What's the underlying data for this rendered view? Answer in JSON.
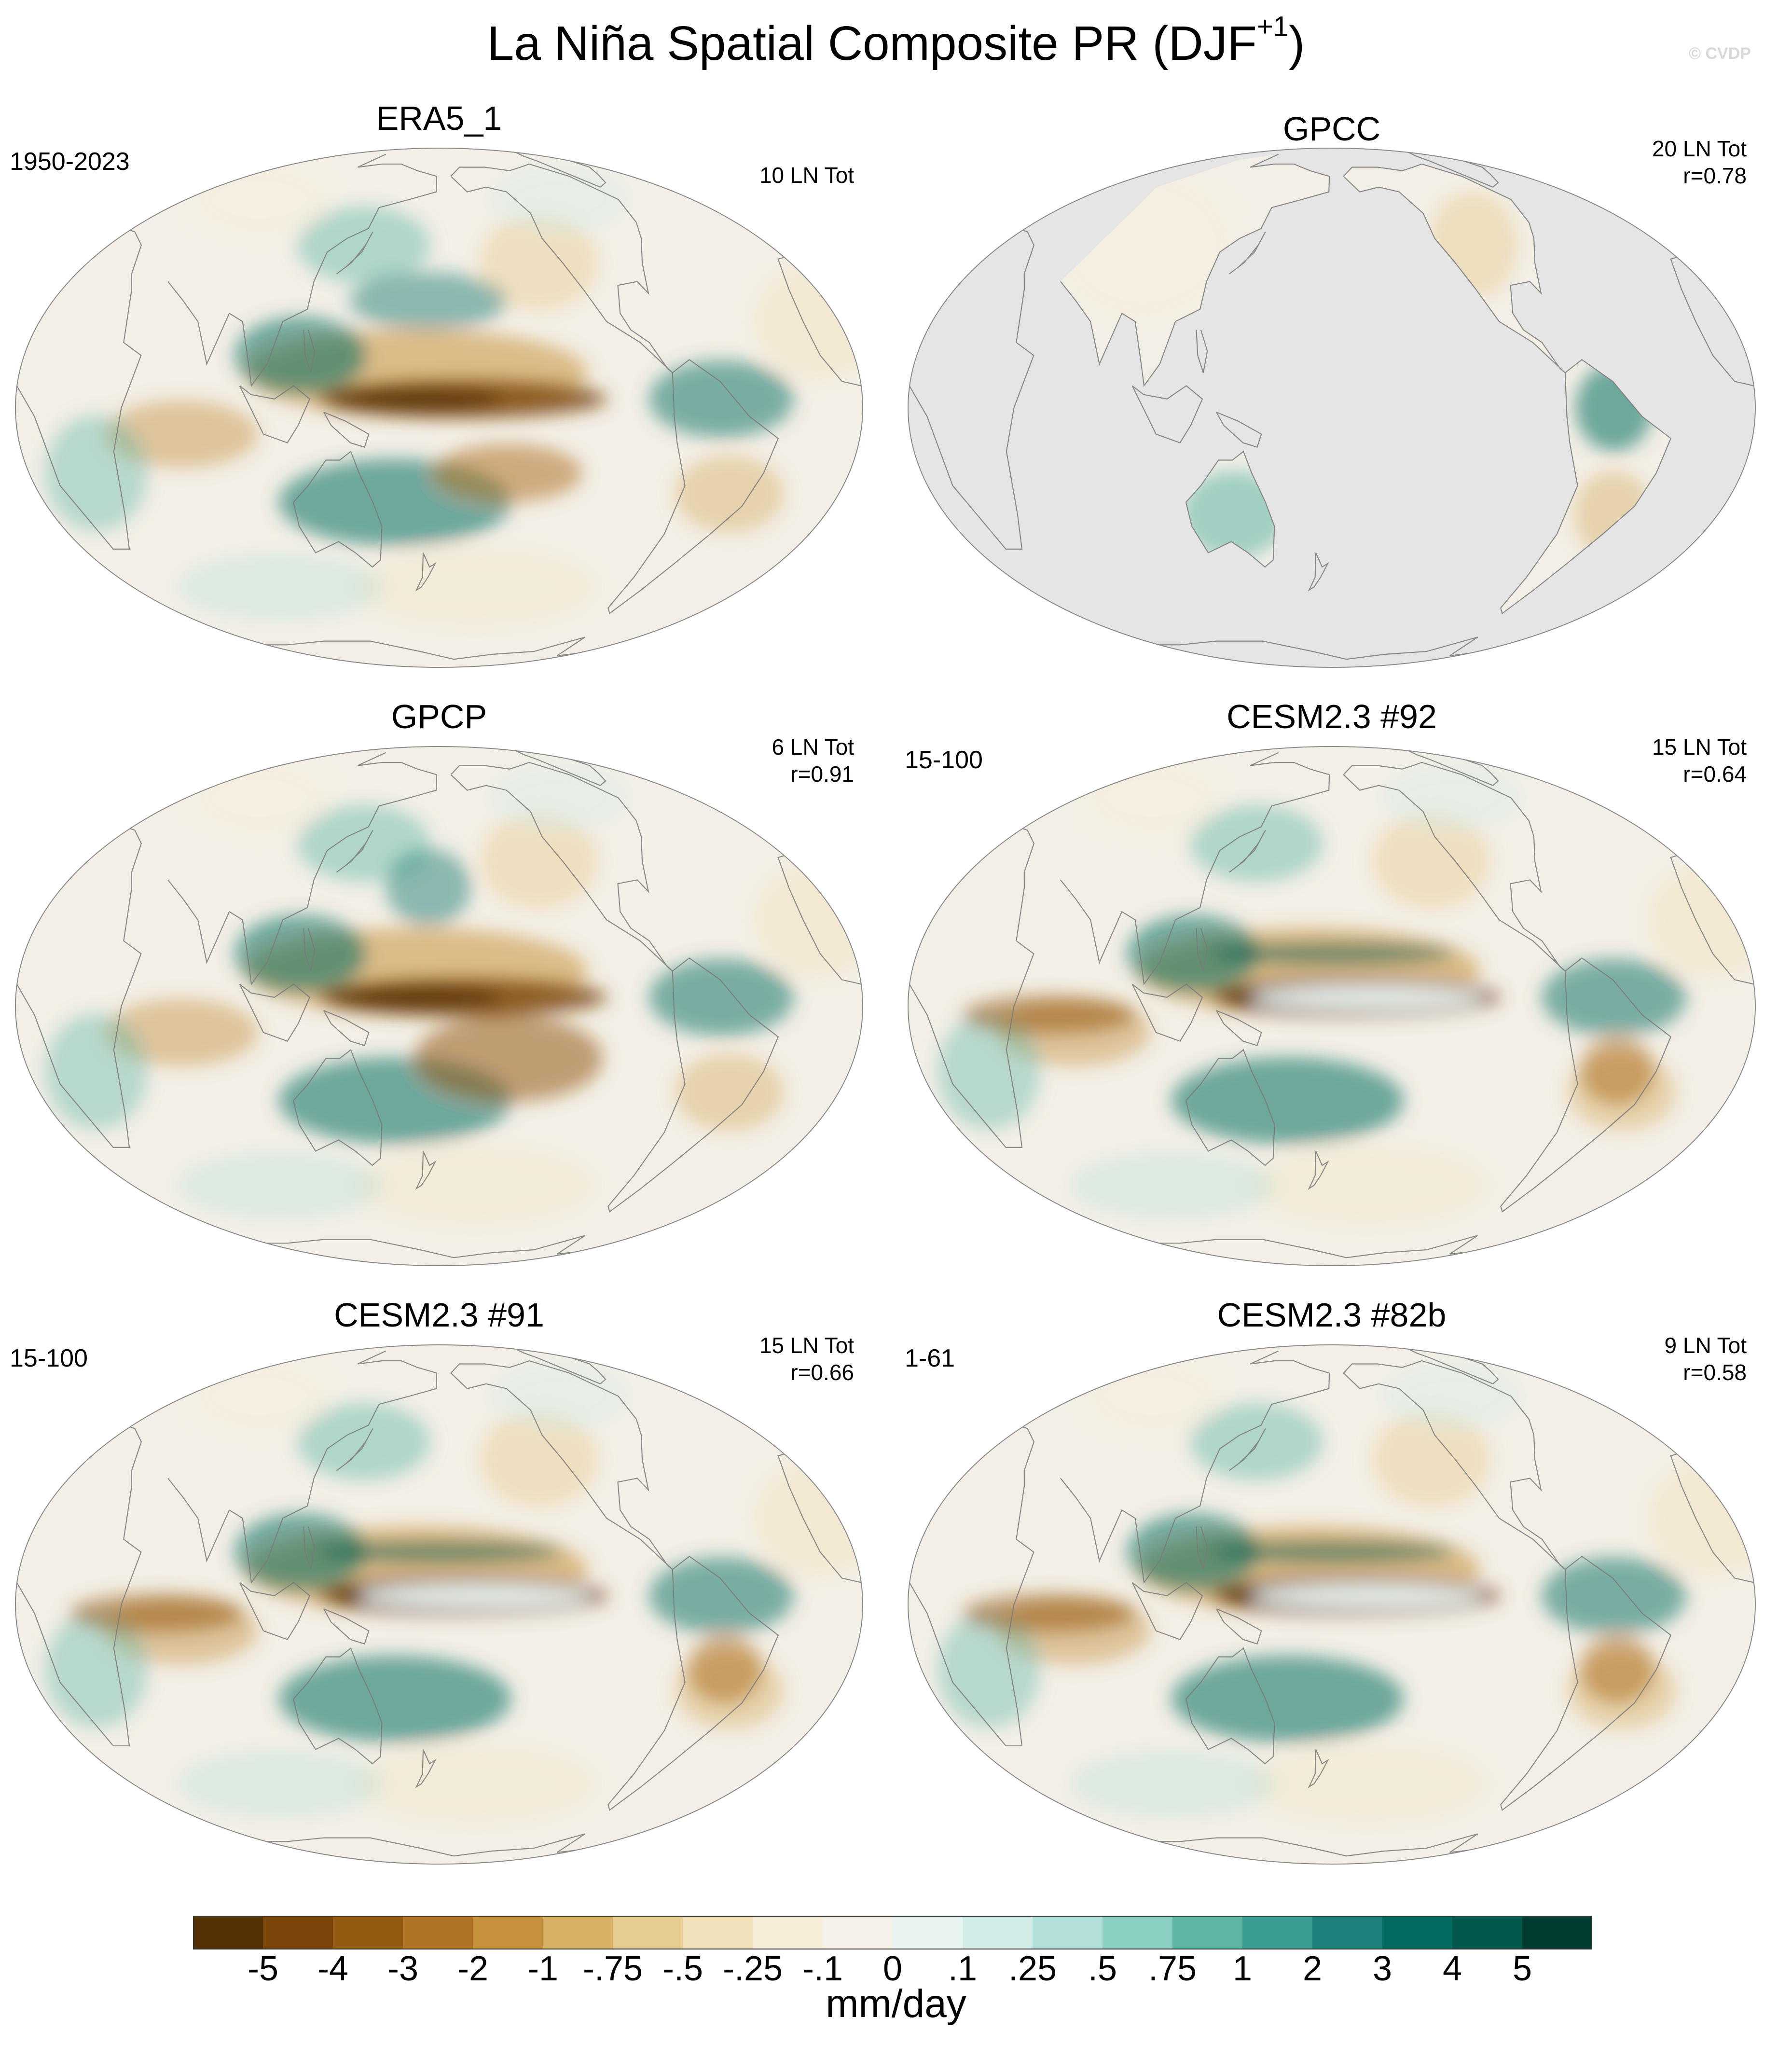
{
  "title": {
    "main": "La Niña Spatial Composite PR (DJF",
    "superscript": "+1",
    "close": ")"
  },
  "watermark": "© CVDP",
  "panels": [
    {
      "id": "era5",
      "title": "ERA5_1",
      "left_label": "1950-2023",
      "right_lines": [
        "10 LN Tot"
      ],
      "style": "era5",
      "masked": false
    },
    {
      "id": "gpcc",
      "title": "GPCC",
      "left_label": "",
      "right_lines": [
        "20 LN Tot",
        "r=0.78"
      ],
      "style": "gpcc",
      "masked": true
    },
    {
      "id": "gpcp",
      "title": "GPCP",
      "left_label": "",
      "right_lines": [
        "6 LN Tot",
        "r=0.91"
      ],
      "style": "gpcp",
      "masked": false
    },
    {
      "id": "cesm92",
      "title": "CESM2.3 #92",
      "left_label": "15-100",
      "right_lines": [
        "15 LN Tot",
        "r=0.64"
      ],
      "style": "cesm",
      "masked": false
    },
    {
      "id": "cesm91",
      "title": "CESM2.3 #91",
      "left_label": "15-100",
      "right_lines": [
        "15 LN Tot",
        "r=0.66"
      ],
      "style": "cesm",
      "masked": false
    },
    {
      "id": "cesm82b",
      "title": "CESM2.3 #82b",
      "left_label": "1-61",
      "right_lines": [
        "9 LN Tot",
        "r=0.58"
      ],
      "style": "cesm",
      "masked": false
    }
  ],
  "colorbar": {
    "units": "mm/day",
    "tick_labels": [
      "-5",
      "-4",
      "-3",
      "-2",
      "-1",
      "-.75",
      "-.5",
      "-.25",
      "-.1",
      "0",
      ".1",
      ".25",
      ".5",
      ".75",
      "1",
      "2",
      "3",
      "4",
      "5"
    ],
    "colors": [
      "#543005",
      "#7a4609",
      "#955a12",
      "#b07224",
      "#c6913d",
      "#d7b066",
      "#e8cd93",
      "#f2e2bb",
      "#f6eed8",
      "#f5f1e9",
      "#e9f3f1",
      "#d2ece7",
      "#b2e0d8",
      "#8bcfc2",
      "#5db5a6",
      "#3b9c91",
      "#1e8179",
      "#036b5f",
      "#01594e",
      "#003c30"
    ]
  }
}
